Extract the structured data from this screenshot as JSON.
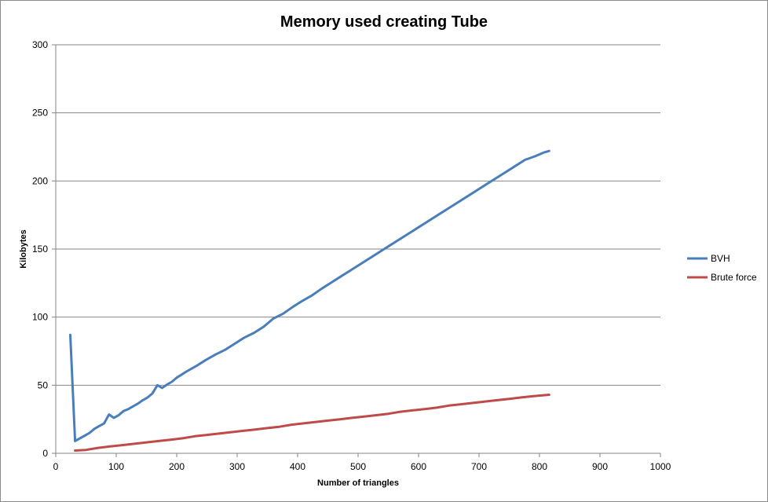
{
  "chart_data": {
    "type": "line",
    "title": "Memory used creating Tube",
    "xlabel": "Number of triangles",
    "ylabel": "Kilobytes",
    "xlim": [
      0,
      1000
    ],
    "ylim": [
      0,
      300
    ],
    "x_ticks": [
      "0",
      "100",
      "200",
      "300",
      "400",
      "500",
      "600",
      "700",
      "800",
      "900",
      "1000"
    ],
    "y_ticks": [
      "0",
      "50",
      "100",
      "150",
      "200",
      "250",
      "300"
    ],
    "grid": "horizontal",
    "legend_position": "right",
    "series": [
      {
        "name": "BVH",
        "color": "#4a7ebb",
        "points": [
          [
            24,
            87
          ],
          [
            32,
            9
          ],
          [
            40,
            11
          ],
          [
            48,
            13
          ],
          [
            56,
            15
          ],
          [
            64,
            18
          ],
          [
            72,
            20
          ],
          [
            80,
            22
          ],
          [
            88,
            28.5
          ],
          [
            96,
            26
          ],
          [
            104,
            28
          ],
          [
            112,
            31
          ],
          [
            120,
            32.5
          ],
          [
            128,
            34.5
          ],
          [
            136,
            36.5
          ],
          [
            144,
            39
          ],
          [
            152,
            41
          ],
          [
            160,
            44
          ],
          [
            168,
            50
          ],
          [
            176,
            48
          ],
          [
            184,
            50.5
          ],
          [
            192,
            52.5
          ],
          [
            200,
            55.5
          ],
          [
            216,
            60
          ],
          [
            232,
            64
          ],
          [
            248,
            68.5
          ],
          [
            264,
            72.5
          ],
          [
            280,
            76
          ],
          [
            296,
            80.5
          ],
          [
            312,
            85
          ],
          [
            328,
            88.5
          ],
          [
            344,
            93
          ],
          [
            360,
            99
          ],
          [
            376,
            102.5
          ],
          [
            392,
            107.5
          ],
          [
            408,
            112
          ],
          [
            424,
            116
          ],
          [
            440,
            121
          ],
          [
            456,
            125.5
          ],
          [
            472,
            130
          ],
          [
            488,
            134.5
          ],
          [
            504,
            139
          ],
          [
            520,
            143.5
          ],
          [
            536,
            148
          ],
          [
            552,
            152.5
          ],
          [
            568,
            157
          ],
          [
            584,
            161.5
          ],
          [
            600,
            166
          ],
          [
            616,
            170.5
          ],
          [
            632,
            175
          ],
          [
            648,
            179.5
          ],
          [
            664,
            184
          ],
          [
            680,
            188.5
          ],
          [
            696,
            193
          ],
          [
            712,
            197.5
          ],
          [
            728,
            202
          ],
          [
            744,
            206.5
          ],
          [
            760,
            211
          ],
          [
            776,
            215.5
          ],
          [
            792,
            218
          ],
          [
            800,
            219.5
          ],
          [
            808,
            221
          ],
          [
            816,
            222
          ]
        ]
      },
      {
        "name": "Brute force",
        "color": "#be4b48",
        "points": [
          [
            32,
            2
          ],
          [
            50,
            2.5
          ],
          [
            70,
            4
          ],
          [
            90,
            5
          ],
          [
            110,
            6
          ],
          [
            130,
            7
          ],
          [
            150,
            8
          ],
          [
            170,
            9
          ],
          [
            190,
            10
          ],
          [
            210,
            11
          ],
          [
            230,
            12.5
          ],
          [
            250,
            13.5
          ],
          [
            270,
            14.5
          ],
          [
            290,
            15.5
          ],
          [
            310,
            16.5
          ],
          [
            330,
            17.5
          ],
          [
            350,
            18.5
          ],
          [
            370,
            19.5
          ],
          [
            390,
            21
          ],
          [
            410,
            22
          ],
          [
            430,
            23
          ],
          [
            450,
            24
          ],
          [
            470,
            25
          ],
          [
            490,
            26
          ],
          [
            510,
            27
          ],
          [
            530,
            28
          ],
          [
            550,
            29
          ],
          [
            570,
            30.5
          ],
          [
            590,
            31.5
          ],
          [
            610,
            32.5
          ],
          [
            630,
            33.5
          ],
          [
            650,
            35
          ],
          [
            670,
            36
          ],
          [
            690,
            37
          ],
          [
            710,
            38
          ],
          [
            730,
            39
          ],
          [
            750,
            40
          ],
          [
            770,
            41
          ],
          [
            790,
            42
          ],
          [
            816,
            43
          ]
        ]
      }
    ]
  }
}
